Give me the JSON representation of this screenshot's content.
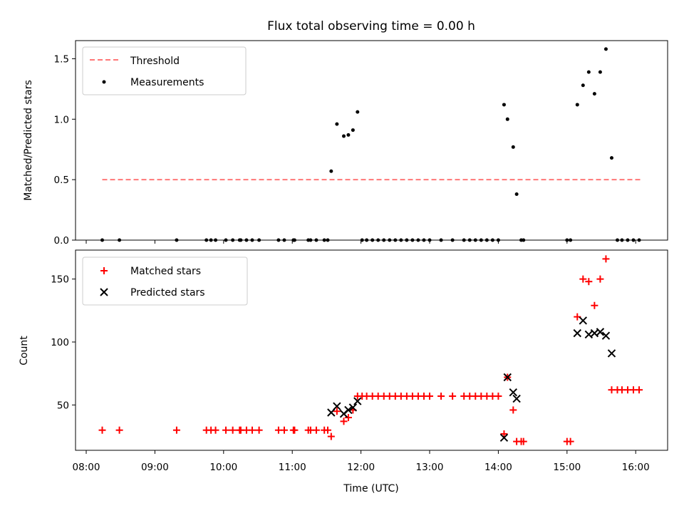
{
  "chart_data": [
    {
      "type": "scatter",
      "title": "Flux total observing time = 0.00 h",
      "xlabel": "",
      "ylabel": "Matched/Predicted stars",
      "ylim": [
        0,
        1.65
      ],
      "yticks": [
        "0.0",
        "0.5",
        "1.0",
        "1.5"
      ],
      "grid": false,
      "legend_position": "top-left",
      "threshold": {
        "name": "Threshold",
        "y": 0.5,
        "x_range": [
          "08:14",
          "16:05"
        ],
        "color": "#ff7777",
        "style": "dashed"
      },
      "series": [
        {
          "name": "Measurements",
          "color": "#000000",
          "marker": "dot",
          "x": [
            "08:14",
            "08:29",
            "09:19",
            "09:45",
            "09:49",
            "09:53",
            "10:02",
            "10:08",
            "10:14",
            "10:15",
            "10:20",
            "10:25",
            "10:31",
            "10:48",
            "10:53",
            "11:01",
            "11:02",
            "11:14",
            "11:16",
            "11:21",
            "11:28",
            "11:31",
            "11:34",
            "11:39",
            "11:45",
            "11:49",
            "11:53",
            "11:57",
            "12:01",
            "12:05",
            "12:10",
            "12:15",
            "12:20",
            "12:25",
            "12:30",
            "12:35",
            "12:40",
            "12:45",
            "12:50",
            "12:55",
            "13:00",
            "13:10",
            "13:20",
            "13:30",
            "13:35",
            "13:40",
            "13:45",
            "13:50",
            "13:55",
            "14:00",
            "14:05",
            "14:08",
            "14:13",
            "14:16",
            "14:20",
            "14:22",
            "15:00",
            "15:03",
            "15:09",
            "15:14",
            "15:19",
            "15:24",
            "15:29",
            "15:34",
            "15:39",
            "15:44",
            "15:48",
            "15:53",
            "15:58",
            "16:03"
          ],
          "y": [
            0,
            0,
            0,
            0,
            0,
            0,
            0,
            0,
            0,
            0,
            0,
            0,
            0,
            0,
            0,
            0,
            0,
            0,
            0,
            0,
            0,
            0,
            0.57,
            0.96,
            0.86,
            0.87,
            0.91,
            1.06,
            0,
            0,
            0,
            0,
            0,
            0,
            0,
            0,
            0,
            0,
            0,
            0,
            0,
            0,
            0,
            0,
            0,
            0,
            0,
            0,
            0,
            0,
            1.12,
            1.0,
            0.77,
            0.38,
            0,
            0,
            0,
            0,
            1.12,
            1.28,
            1.39,
            1.21,
            1.39,
            1.58,
            0.68,
            0,
            0,
            0,
            0,
            0
          ]
        }
      ]
    },
    {
      "type": "scatter",
      "title": "",
      "xlabel": "Time (UTC)",
      "ylabel": "Count",
      "ylim": [
        14,
        173
      ],
      "yticks": [
        "50",
        "100",
        "150"
      ],
      "xticks": [
        "08:00",
        "09:00",
        "10:00",
        "11:00",
        "12:00",
        "13:00",
        "14:00",
        "15:00",
        "16:00"
      ],
      "grid": false,
      "legend_position": "top-left",
      "series": [
        {
          "name": "Matched stars",
          "color": "#ff0000",
          "marker": "plus",
          "x": [
            "08:14",
            "08:29",
            "09:19",
            "09:45",
            "09:49",
            "09:53",
            "10:02",
            "10:08",
            "10:14",
            "10:15",
            "10:20",
            "10:25",
            "10:31",
            "10:48",
            "10:53",
            "11:01",
            "11:02",
            "11:14",
            "11:16",
            "11:21",
            "11:28",
            "11:31",
            "11:34",
            "11:39",
            "11:45",
            "11:49",
            "11:53",
            "11:57",
            "12:01",
            "12:05",
            "12:10",
            "12:15",
            "12:20",
            "12:25",
            "12:30",
            "12:35",
            "12:40",
            "12:45",
            "12:50",
            "12:55",
            "13:00",
            "13:10",
            "13:20",
            "13:30",
            "13:35",
            "13:40",
            "13:45",
            "13:50",
            "13:55",
            "14:00",
            "14:05",
            "14:08",
            "14:13",
            "14:16",
            "14:20",
            "14:22",
            "15:00",
            "15:03",
            "15:09",
            "15:14",
            "15:19",
            "15:24",
            "15:29",
            "15:34",
            "15:39",
            "15:44",
            "15:48",
            "15:53",
            "15:58",
            "16:03"
          ],
          "y": [
            30,
            30,
            30,
            30,
            30,
            30,
            30,
            30,
            30,
            30,
            30,
            30,
            30,
            30,
            30,
            30,
            30,
            30,
            30,
            30,
            30,
            30,
            25,
            45,
            37,
            40,
            46,
            57,
            57,
            57,
            57,
            57,
            57,
            57,
            57,
            57,
            57,
            57,
            57,
            57,
            57,
            57,
            57,
            57,
            57,
            57,
            57,
            57,
            57,
            57,
            27,
            72,
            46,
            21,
            21,
            21,
            21,
            21,
            120,
            150,
            148,
            129,
            150,
            166,
            62,
            62,
            62,
            62,
            62,
            62
          ]
        },
        {
          "name": "Predicted stars",
          "color": "#000000",
          "marker": "x",
          "x": [
            "11:34",
            "11:39",
            "11:45",
            "11:49",
            "11:53",
            "11:57",
            "14:05",
            "14:08",
            "14:13",
            "14:16",
            "15:09",
            "15:14",
            "15:19",
            "15:24",
            "15:29",
            "15:34",
            "15:39"
          ],
          "y": [
            44,
            49,
            43,
            46,
            48,
            53,
            24,
            72,
            60,
            55,
            107,
            117,
            106,
            107,
            108,
            105,
            91
          ]
        }
      ]
    }
  ]
}
